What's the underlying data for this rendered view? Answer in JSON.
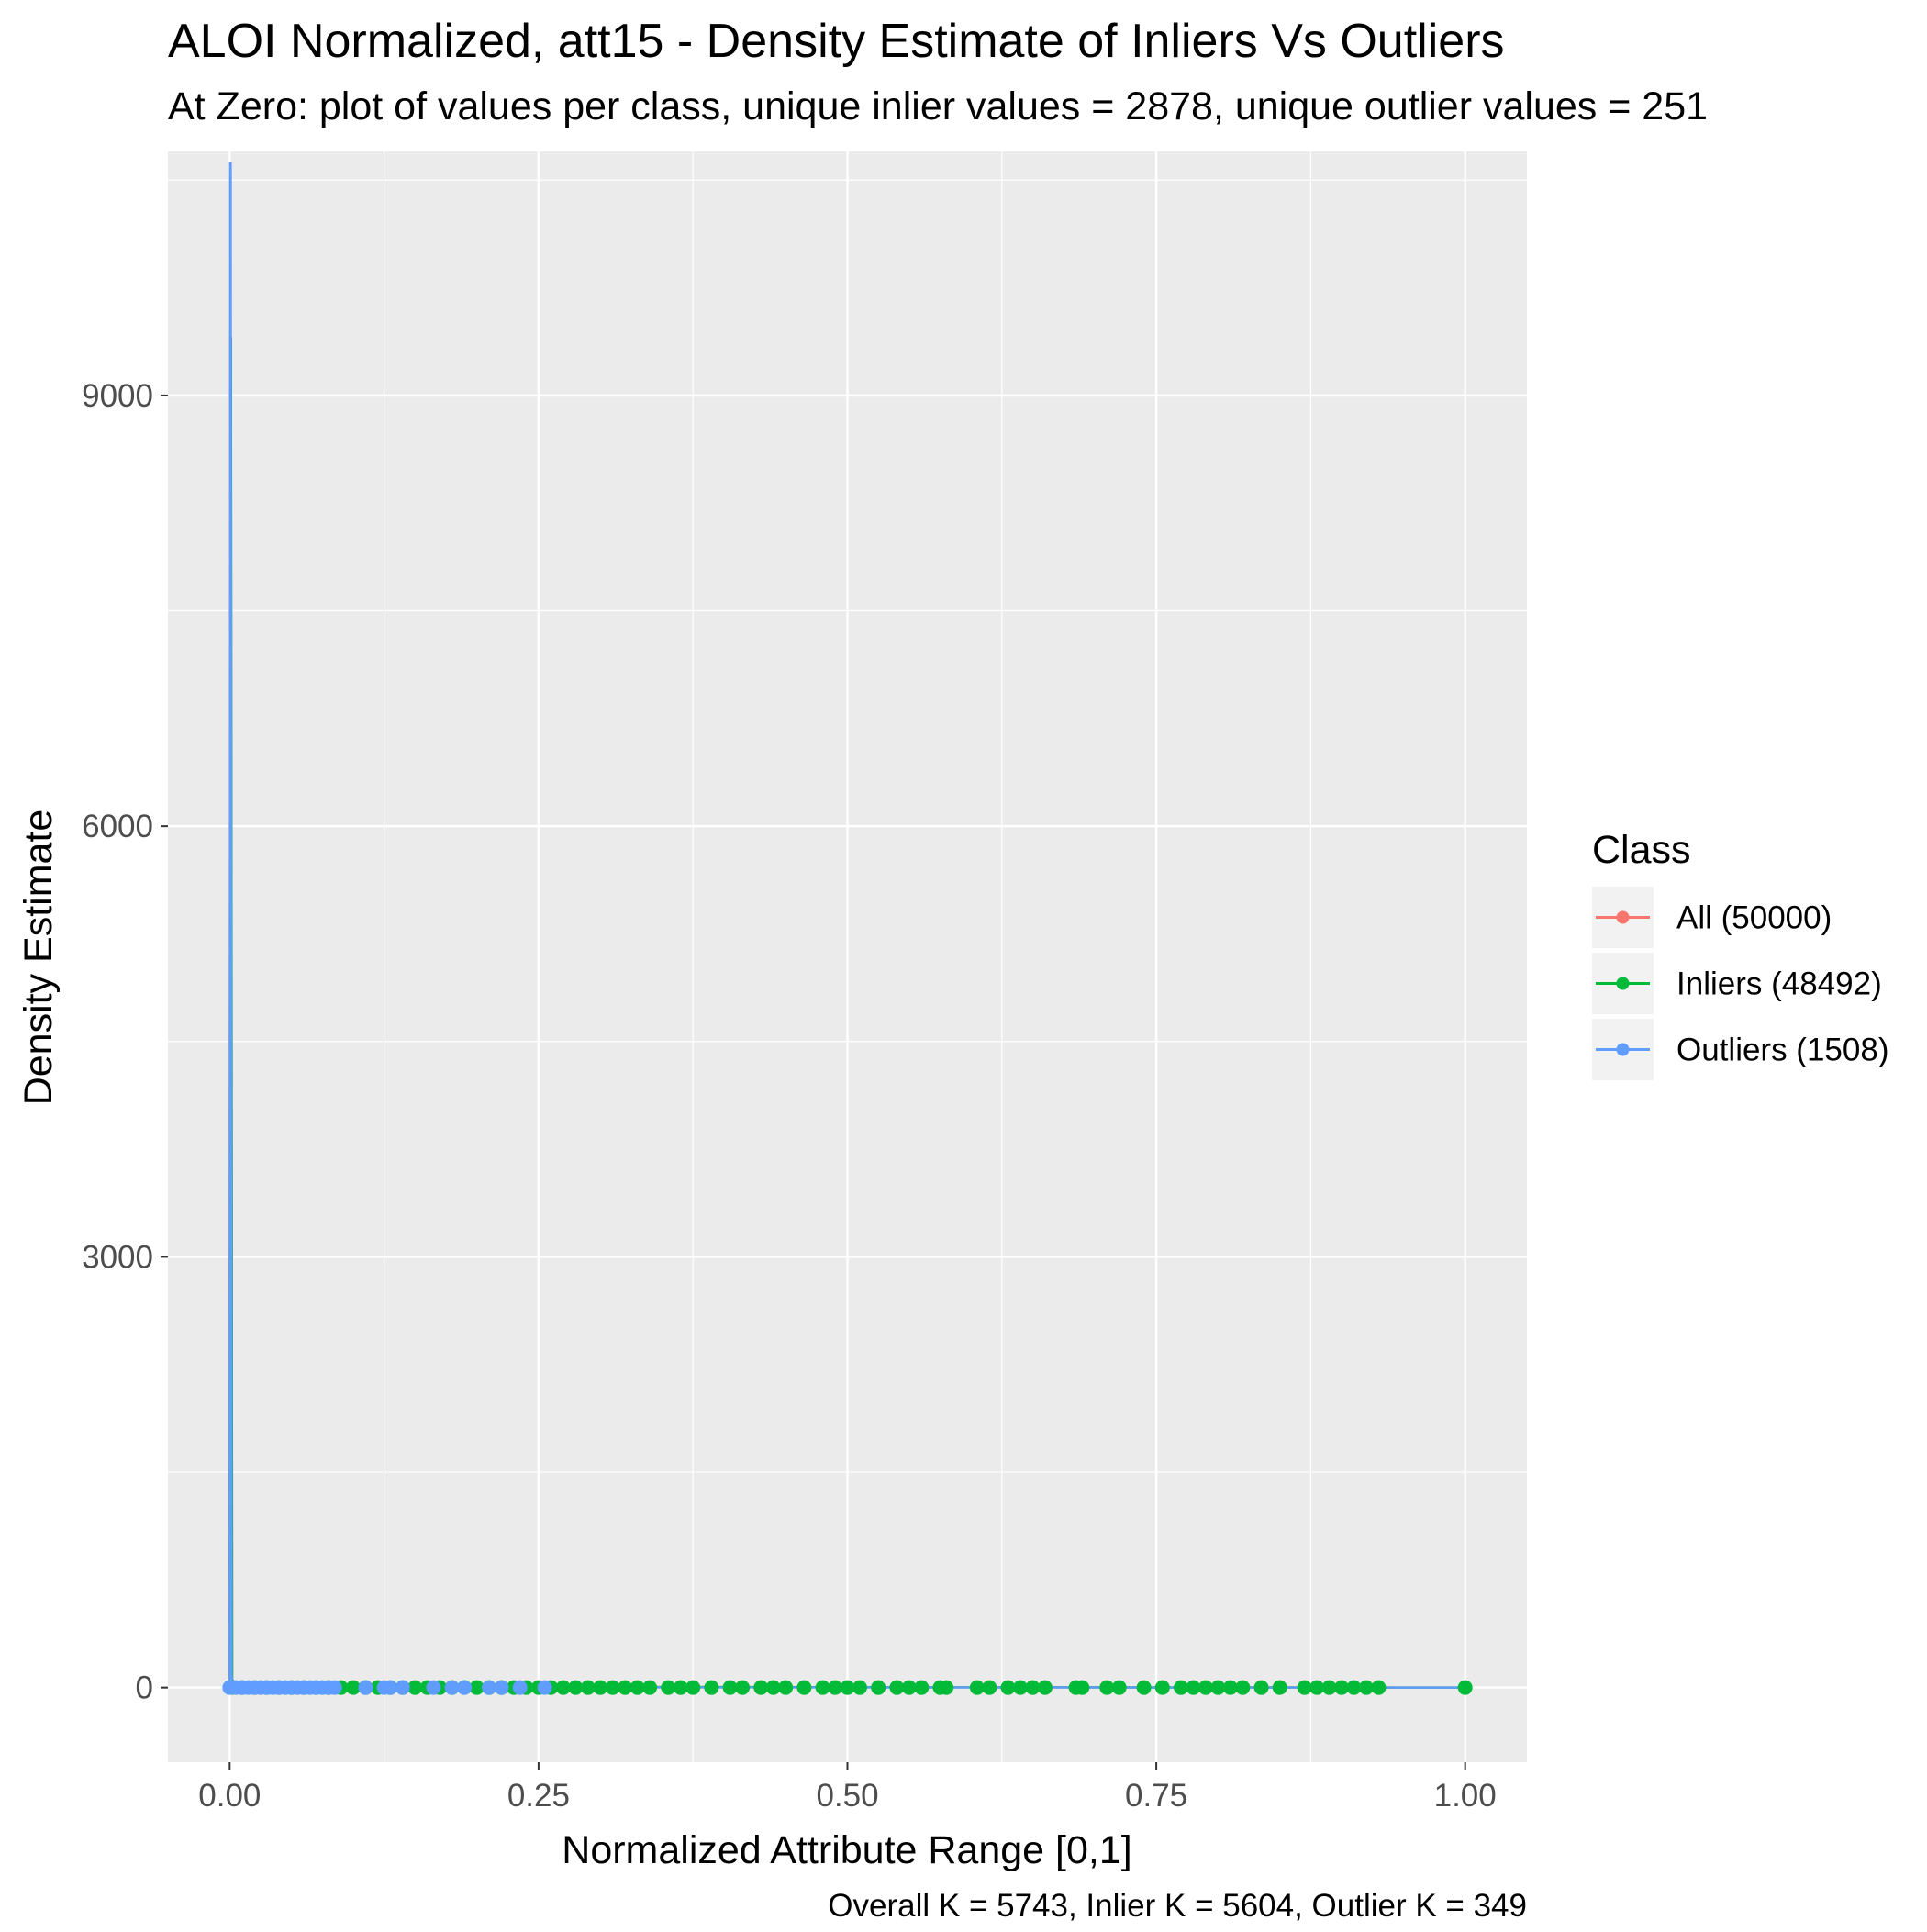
{
  "chart_data": {
    "type": "line",
    "title": "ALOI Normalized, att15 - Density Estimate of Inliers Vs Outliers",
    "subtitle": "At Zero: plot of values per class, unique inlier values = 2878, unique outlier values = 251",
    "xlabel": "Normalized Attribute Range [0,1]",
    "ylabel": "Density Estimate",
    "caption": "Overall K = 5743, Inlier K = 5604, Outlier K = 349",
    "xlim": [
      -0.1,
      2.1
    ],
    "ylim": [
      -520,
      10700
    ],
    "x_ticks": [
      0,
      0.25,
      0.5,
      0.75,
      1.0
    ],
    "x_tick_labels": [
      "0.00",
      "0.25",
      "0.50",
      "0.75",
      "1.00"
    ],
    "y_ticks": [
      0,
      3000,
      6000,
      9000
    ],
    "y_tick_labels": [
      "0",
      "3000",
      "6000",
      "9000"
    ],
    "grid": true,
    "legend": {
      "title": "Class",
      "position": "right",
      "entries": [
        {
          "label": "All (50000)",
          "color": "#F8766D"
        },
        {
          "label": "Inliers (48492)",
          "color": "#00BA38"
        },
        {
          "label": "Outliers (1508)",
          "color": "#619CFF"
        }
      ]
    },
    "series": [
      {
        "name": "All (50000)",
        "color": "#F8766D",
        "x": [
          0,
          0.0005,
          0.001,
          0.002,
          0.004,
          0.01,
          1.0
        ],
        "y": [
          0,
          9400,
          9400,
          60,
          20,
          5,
          0
        ]
      },
      {
        "name": "Inliers (48492)",
        "color": "#00BA38",
        "x": [
          0,
          0.0005,
          0.001,
          0.002,
          0.004,
          0.01,
          1.0
        ],
        "y": [
          0,
          9400,
          9400,
          60,
          20,
          5,
          0
        ]
      },
      {
        "name": "Outliers (1508)",
        "color": "#619CFF",
        "x": [
          0,
          0.0004,
          0.0008,
          0.0015,
          0.003,
          0.01,
          1.0
        ],
        "y": [
          0,
          10620,
          10620,
          80,
          20,
          2,
          0
        ]
      }
    ],
    "points": {
      "inliers": [
        0.002,
        0.01,
        0.02,
        0.03,
        0.04,
        0.05,
        0.06,
        0.07,
        0.08,
        0.09,
        0.1,
        0.11,
        0.12,
        0.13,
        0.14,
        0.15,
        0.16,
        0.17,
        0.18,
        0.19,
        0.2,
        0.21,
        0.22,
        0.23,
        0.24,
        0.25,
        0.26,
        0.27,
        0.28,
        0.29,
        0.3,
        0.31,
        0.32,
        0.33,
        0.34,
        0.355,
        0.365,
        0.375,
        0.39,
        0.405,
        0.415,
        0.43,
        0.44,
        0.45,
        0.465,
        0.48,
        0.49,
        0.5,
        0.51,
        0.525,
        0.54,
        0.55,
        0.56,
        0.575,
        0.58,
        0.605,
        0.615,
        0.63,
        0.64,
        0.65,
        0.66,
        0.685,
        0.69,
        0.71,
        0.72,
        0.74,
        0.755,
        0.77,
        0.78,
        0.79,
        0.8,
        0.81,
        0.82,
        0.835,
        0.85,
        0.87,
        0.88,
        0.89,
        0.9,
        0.91,
        0.92,
        0.93,
        1.0
      ],
      "outliers": [
        0.0,
        0.005,
        0.01,
        0.015,
        0.02,
        0.025,
        0.03,
        0.035,
        0.04,
        0.045,
        0.05,
        0.055,
        0.06,
        0.065,
        0.07,
        0.075,
        0.08,
        0.085,
        0.11,
        0.125,
        0.13,
        0.14,
        0.165,
        0.18,
        0.19,
        0.21,
        0.22,
        0.235,
        0.255
      ]
    }
  }
}
